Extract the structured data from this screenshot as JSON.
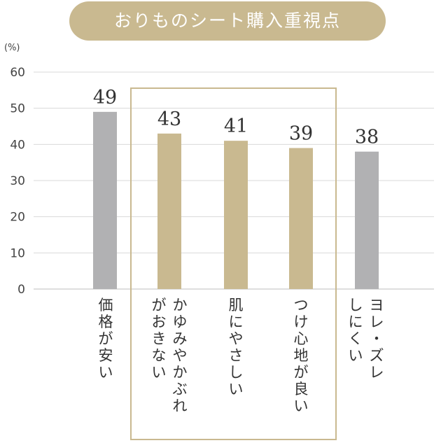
{
  "chart_data": {
    "type": "bar",
    "title": "おりものシート購入重視点",
    "unit": "(%)",
    "ylim": [
      0,
      60
    ],
    "yticks": [
      0,
      10,
      20,
      30,
      40,
      50,
      60
    ],
    "grid": true,
    "categories": [
      [
        "価格が安い"
      ],
      [
        "かゆみやかぶれ",
        "がおきない"
      ],
      [
        "肌にやさしい"
      ],
      [
        "つけ心地が良い"
      ],
      [
        "ヨレ・ズレ",
        "しにくい"
      ]
    ],
    "values": [
      49,
      43,
      41,
      39,
      38
    ],
    "bar_colors": [
      "#b1b1b3",
      "#c9b990",
      "#c9b990",
      "#c9b990",
      "#b1b1b3"
    ],
    "highlight_box_color": "#c9b990"
  }
}
